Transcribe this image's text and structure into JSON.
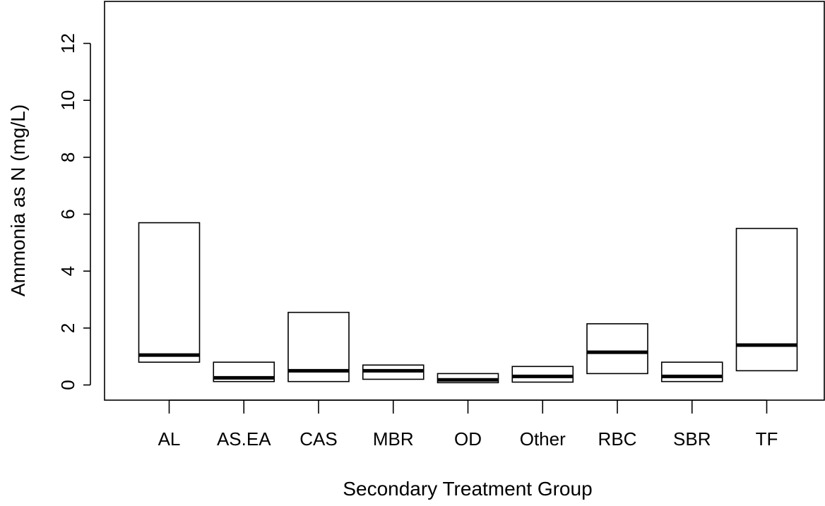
{
  "chart_data": {
    "type": "boxplot",
    "title": "",
    "xlabel": "Secondary Treatment Group",
    "ylabel": "Ammonia as N (mg/L)",
    "ylim": [
      0,
      12
    ],
    "yticks": [
      "0",
      "2",
      "4",
      "6",
      "8",
      "10",
      "12"
    ],
    "categories": [
      "AL",
      "AS.EA",
      "CAS",
      "MBR",
      "OD",
      "Other",
      "RBC",
      "SBR",
      "TF"
    ],
    "boxes": [
      {
        "category": "AL",
        "q1": 0.8,
        "median": 1.05,
        "q3": 5.7
      },
      {
        "category": "AS.EA",
        "q1": 0.12,
        "median": 0.25,
        "q3": 0.8
      },
      {
        "category": "CAS",
        "q1": 0.12,
        "median": 0.5,
        "q3": 2.55
      },
      {
        "category": "MBR",
        "q1": 0.2,
        "median": 0.5,
        "q3": 0.7
      },
      {
        "category": "OD",
        "q1": 0.08,
        "median": 0.18,
        "q3": 0.4
      },
      {
        "category": "Other",
        "q1": 0.1,
        "median": 0.3,
        "q3": 0.65
      },
      {
        "category": "RBC",
        "q1": 0.4,
        "median": 1.15,
        "q3": 2.15
      },
      {
        "category": "SBR",
        "q1": 0.12,
        "median": 0.3,
        "q3": 0.8
      },
      {
        "category": "TF",
        "q1": 0.5,
        "median": 1.4,
        "q3": 5.5
      }
    ],
    "grid": false,
    "legend": "none",
    "colors": {
      "stroke": "#000000",
      "fill": "#ffffff"
    }
  }
}
